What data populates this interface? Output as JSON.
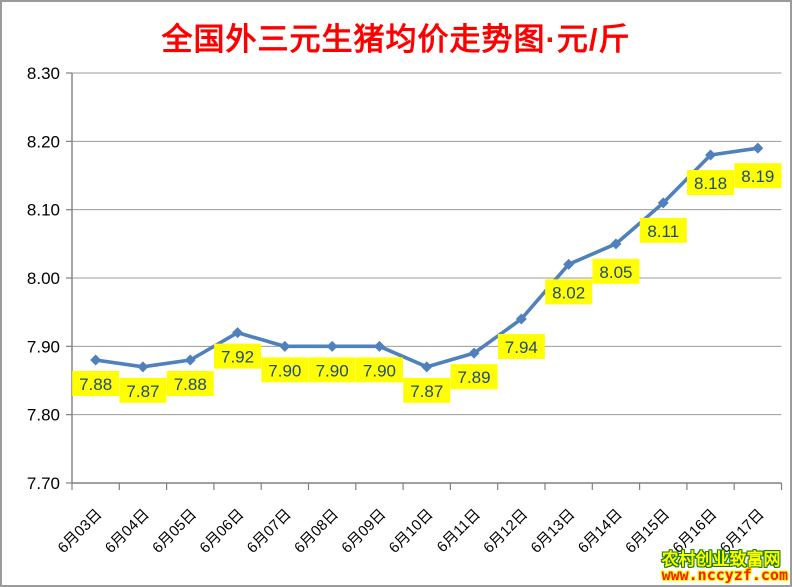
{
  "title": "全国外三元生猪均价走势图·元/斤",
  "watermark": {
    "line1": "农村创业致富网",
    "line2": "www.nccyzf.com"
  },
  "chart_data": {
    "type": "line",
    "title": "全国外三元生猪均价走势图·元/斤",
    "categories": [
      "6月03日",
      "6月04日",
      "6月05日",
      "6月06日",
      "6月07日",
      "6月08日",
      "6月09日",
      "6月10日",
      "6月11日",
      "6月12日",
      "6月13日",
      "6月14日",
      "6月15日",
      "6月16日",
      "6月17日"
    ],
    "values": [
      7.88,
      7.87,
      7.88,
      7.92,
      7.9,
      7.9,
      7.9,
      7.87,
      7.89,
      7.94,
      8.02,
      8.05,
      8.11,
      8.18,
      8.19
    ],
    "data_labels": [
      "7.88",
      "7.87",
      "7.88",
      "7.92",
      "7.90",
      "7.90",
      "7.90",
      "7.87",
      "7.89",
      "7.94",
      "8.02",
      "8.05",
      "8.11",
      "8.18",
      "8.19"
    ],
    "xlabel": "",
    "ylabel": "",
    "ylim": [
      7.7,
      8.3
    ],
    "ytick_step": 0.1,
    "ytick_labels": [
      "8.30",
      "8.20",
      "8.10",
      "8.00",
      "7.90",
      "7.80",
      "7.70"
    ],
    "grid": true,
    "legend": "none",
    "marker": "diamond",
    "data_label_style": "yellow-box-below-point"
  },
  "colors": {
    "title_text": "#ff0000",
    "series_line": "#4f81bd",
    "marker_fill": "#4f81bd",
    "data_label_bg": "#ffff00",
    "data_label_text": "#1f497d",
    "gridline": "#9c9c9c",
    "axis_line": "#808080",
    "tick_label_text": "#000000",
    "watermark_name_fill": "#ffff00",
    "watermark_name_outline": "#1a7a00",
    "watermark_url_fill": "#ff1a00",
    "watermark_url_outline": "#ffff00"
  }
}
